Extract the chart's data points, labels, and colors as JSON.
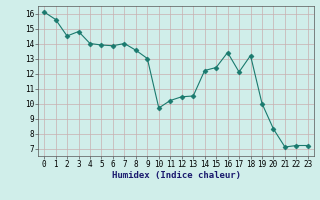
{
  "x": [
    0,
    1,
    2,
    3,
    4,
    5,
    6,
    7,
    8,
    9,
    10,
    11,
    12,
    13,
    14,
    15,
    16,
    17,
    18,
    19,
    20,
    21,
    22,
    23
  ],
  "y": [
    16.1,
    15.6,
    14.5,
    14.8,
    14.0,
    13.9,
    13.85,
    14.0,
    13.55,
    13.0,
    9.7,
    10.2,
    10.45,
    10.5,
    12.2,
    12.4,
    13.4,
    12.1,
    13.2,
    10.0,
    8.3,
    7.1,
    7.2,
    7.2
  ],
  "line_color": "#1a7a6e",
  "marker": "D",
  "marker_size": 2.5,
  "bg_color": "#d0eeea",
  "grid_color_major": "#c8b0b0",
  "grid_color_minor": "#ddd0d0",
  "xlabel": "Humidex (Indice chaleur)",
  "ylim": [
    6.5,
    16.5
  ],
  "xlim": [
    -0.5,
    23.5
  ],
  "yticks": [
    7,
    8,
    9,
    10,
    11,
    12,
    13,
    14,
    15,
    16
  ],
  "xticks": [
    0,
    1,
    2,
    3,
    4,
    5,
    6,
    7,
    8,
    9,
    10,
    11,
    12,
    13,
    14,
    15,
    16,
    17,
    18,
    19,
    20,
    21,
    22,
    23
  ],
  "tick_fontsize": 5.5,
  "xlabel_fontsize": 6.5
}
